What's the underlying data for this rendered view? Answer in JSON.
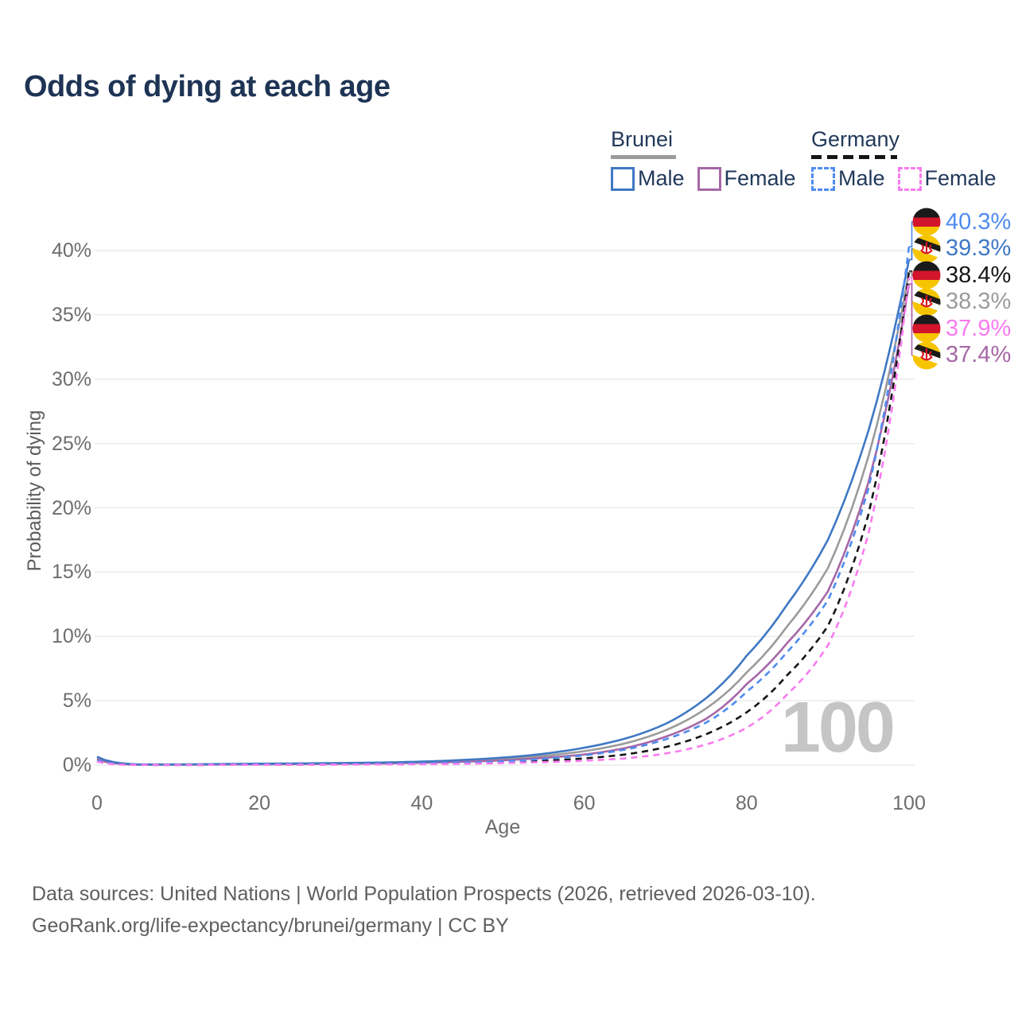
{
  "title": "Odds of dying at each age",
  "watermark": "100",
  "legend": {
    "groups": [
      {
        "country": "Brunei",
        "line_style": "solid",
        "underline_color": "#9b9b9b",
        "items": [
          {
            "label": "Male",
            "color": "#3f78c4"
          },
          {
            "label": "Female",
            "color": "#a667a6"
          }
        ]
      },
      {
        "country": "Germany",
        "line_style": "dashed",
        "underline_color": "#161616",
        "items": [
          {
            "label": "Male",
            "color": "#4f8cf0"
          },
          {
            "label": "Female",
            "color": "#f97bef"
          }
        ]
      }
    ]
  },
  "chart_data": {
    "type": "line",
    "title": "Odds of dying at each age",
    "xlabel": "Age",
    "ylabel": "Probability of dying",
    "xlim": [
      0,
      100
    ],
    "ylim_percent": [
      0,
      43
    ],
    "grid": "horizontal",
    "xticks": [
      "0",
      "20",
      "40",
      "60",
      "80",
      "100"
    ],
    "yticks": [
      "0%",
      "5%",
      "10%",
      "15%",
      "20%",
      "25%",
      "30%",
      "35%",
      "40%"
    ],
    "x": [
      0,
      5,
      10,
      15,
      20,
      25,
      30,
      35,
      40,
      45,
      50,
      55,
      60,
      65,
      70,
      75,
      80,
      85,
      90,
      95,
      100
    ],
    "series": [
      {
        "name": "Brunei Overall",
        "country": "Brunei",
        "sex": "Overall",
        "color": "#9b9b9b",
        "dash": false,
        "end_label": "38.3%",
        "values": [
          0.55,
          0.04,
          0.04,
          0.06,
          0.09,
          0.11,
          0.13,
          0.17,
          0.22,
          0.32,
          0.47,
          0.72,
          1.08,
          1.68,
          2.7,
          4.4,
          7.2,
          10.8,
          15.3,
          24.0,
          38.3
        ]
      },
      {
        "name": "Brunei Female",
        "country": "Brunei",
        "sex": "Female",
        "color": "#a667a6",
        "dash": false,
        "end_label": "37.4%",
        "values": [
          0.45,
          0.03,
          0.03,
          0.05,
          0.06,
          0.08,
          0.1,
          0.13,
          0.18,
          0.26,
          0.37,
          0.56,
          0.82,
          1.32,
          2.2,
          3.6,
          6.3,
          9.5,
          13.5,
          22.0,
          37.4
        ]
      },
      {
        "name": "Brunei Male",
        "country": "Brunei",
        "sex": "Male",
        "color": "#3f78c4",
        "dash": false,
        "end_label": "39.3%",
        "values": [
          0.65,
          0.05,
          0.05,
          0.08,
          0.11,
          0.13,
          0.16,
          0.2,
          0.27,
          0.4,
          0.58,
          0.88,
          1.35,
          2.05,
          3.2,
          5.2,
          8.5,
          12.5,
          17.5,
          26.0,
          39.3
        ]
      },
      {
        "name": "Germany Overall",
        "country": "Germany",
        "sex": "Overall",
        "color": "#161616",
        "dash": true,
        "end_label": "38.4%",
        "values": [
          0.3,
          0.02,
          0.01,
          0.02,
          0.03,
          0.04,
          0.05,
          0.07,
          0.1,
          0.14,
          0.22,
          0.34,
          0.52,
          0.82,
          1.4,
          2.4,
          4.1,
          7.0,
          10.8,
          19.5,
          38.4
        ]
      },
      {
        "name": "Germany Male",
        "country": "Germany",
        "sex": "Male",
        "color": "#4f8cf0",
        "dash": true,
        "end_label": "40.3%",
        "values": [
          0.35,
          0.02,
          0.01,
          0.03,
          0.05,
          0.06,
          0.07,
          0.09,
          0.13,
          0.19,
          0.29,
          0.48,
          0.76,
          1.2,
          2.0,
          3.3,
          5.7,
          8.8,
          12.8,
          21.5,
          40.3
        ]
      },
      {
        "name": "Germany Female",
        "country": "Germany",
        "sex": "Female",
        "color": "#f97bef",
        "dash": true,
        "end_label": "37.9%",
        "values": [
          0.27,
          0.01,
          0.01,
          0.02,
          0.02,
          0.03,
          0.04,
          0.05,
          0.07,
          0.1,
          0.16,
          0.23,
          0.34,
          0.52,
          0.9,
          1.6,
          2.9,
          5.5,
          9.3,
          18.0,
          37.9
        ]
      }
    ],
    "end_labels_top_to_bottom": [
      "40.3%",
      "39.3%",
      "38.4%",
      "38.3%",
      "37.9%",
      "37.4%"
    ],
    "flag_colors": {
      "germany": {
        "black": "#1a1a1a",
        "red": "#d2152b",
        "gold": "#f7c500"
      },
      "brunei": {
        "yellow": "#f7c500",
        "white": "#ffffff",
        "black": "#1a1a1a",
        "crest_red": "#d8141f"
      }
    },
    "gridline_color": "#e7e7e7"
  },
  "footer": {
    "lines": [
      "Data sources: United Nations | World Population Prospects (2026, retrieved 2026-03-10).",
      "GeoRank.org/life-expectancy/brunei/germany | CC BY"
    ]
  }
}
